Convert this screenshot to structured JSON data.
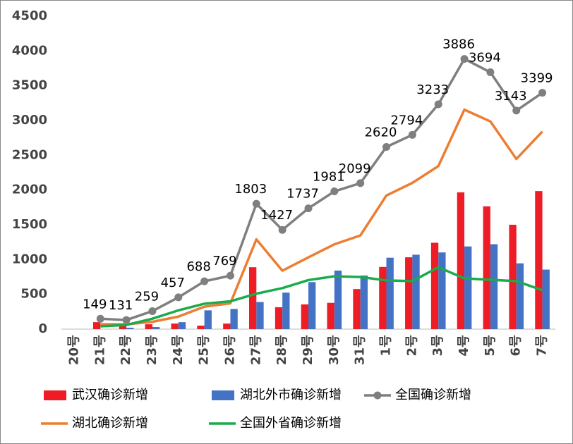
{
  "chart_data": {
    "type": "combo",
    "categories": [
      "20号",
      "21号",
      "22号",
      "23号",
      "24号",
      "25号",
      "26号",
      "27号",
      "28号",
      "29号",
      "30号",
      "31号",
      "1号",
      "2号",
      "3号",
      "4号",
      "5号",
      "6号",
      "7号"
    ],
    "series": [
      {
        "name": "武汉确诊新增",
        "type": "bar",
        "color": "#ee1c25",
        "values": [
          null,
          100,
          50,
          70,
          80,
          50,
          80,
          890,
          315,
          356,
          378,
          576,
          894,
          1033,
          1242,
          1967,
          1766,
          1501,
          1985
        ]
      },
      {
        "name": "湖北外市确诊新增",
        "type": "bar",
        "color": "#4472c4",
        "values": [
          null,
          0,
          20,
          30,
          100,
          270,
          290,
          390,
          525,
          676,
          842,
          771,
          1027,
          1070,
          1103,
          1189,
          1221,
          946,
          856
        ]
      },
      {
        "name": "全国确诊新增",
        "type": "line",
        "color": "#7f7f7f",
        "markers": true,
        "data_labels": true,
        "values": [
          null,
          149,
          131,
          259,
          457,
          688,
          769,
          1803,
          1427,
          1737,
          1981,
          2099,
          2620,
          2794,
          3233,
          3886,
          3694,
          3143,
          3399
        ]
      },
      {
        "name": "湖北确诊新增",
        "type": "line",
        "color": "#ed7d31",
        "values": [
          null,
          70,
          70,
          105,
          180,
          323,
          371,
          1291,
          840,
          1032,
          1220,
          1347,
          1921,
          2103,
          2345,
          3156,
          2987,
          2447,
          2841
        ]
      },
      {
        "name": "全国外省确诊新增",
        "type": "line",
        "color": "#1aab4a",
        "values": [
          null,
          40,
          60,
          150,
          270,
          365,
          400,
          510,
          590,
          705,
          760,
          750,
          700,
          690,
          890,
          730,
          710,
          690,
          560
        ]
      }
    ],
    "ylim": [
      0,
      4500
    ],
    "yticks": [
      0,
      500,
      1000,
      1500,
      2000,
      2500,
      3000,
      3500,
      4000,
      4500
    ],
    "grid": false
  }
}
